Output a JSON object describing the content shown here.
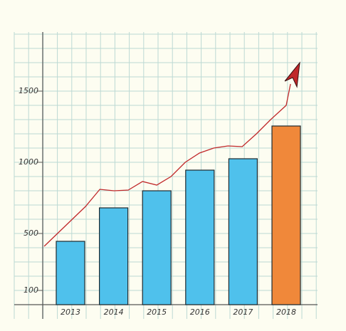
{
  "chart_data": {
    "type": "bar",
    "categories": [
      "2013",
      "2014",
      "2015",
      "2016",
      "2017",
      "2018"
    ],
    "values": [
      445,
      680,
      800,
      945,
      1025,
      1255
    ],
    "colors": [
      "#4fc1ec",
      "#4fc1ec",
      "#4fc1ec",
      "#4fc1ec",
      "#4fc1ec",
      "#f0883a"
    ],
    "line": {
      "color": "#c0282a",
      "x": [
        2012.39,
        2013.35,
        2013.68,
        2014.01,
        2014.34,
        2014.67,
        2015.0,
        2015.33,
        2015.66,
        2015.99,
        2016.32,
        2016.65,
        2016.98,
        2017.31,
        2017.64,
        2018.0,
        2018.1
      ],
      "values": [
        410,
        690,
        810,
        800,
        805,
        865,
        840,
        900,
        1000,
        1065,
        1100,
        1115,
        1110,
        1200,
        1300,
        1400,
        1550
      ]
    },
    "ylim": [
      0,
      1900
    ],
    "yticks": [
      100,
      500,
      1000,
      1500
    ],
    "grid": true
  }
}
